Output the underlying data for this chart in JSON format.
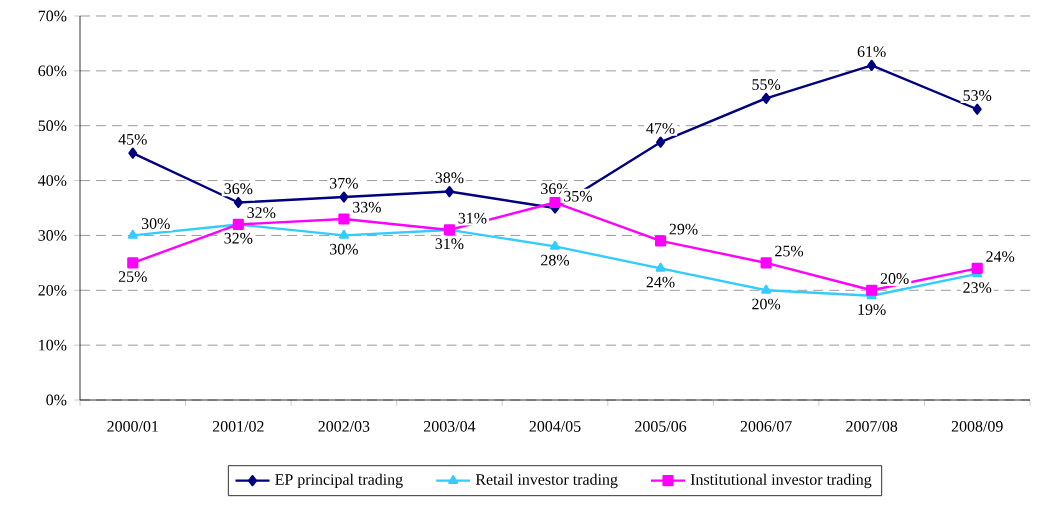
{
  "chart_data": {
    "type": "line",
    "categories": [
      "2000/01",
      "2001/02",
      "2002/03",
      "2003/04",
      "2004/05",
      "2005/06",
      "2006/07",
      "2007/08",
      "2008/09"
    ],
    "series": [
      {
        "name": "EP principal trading",
        "color": "#000080",
        "marker": "diamond",
        "values": [
          45,
          36,
          37,
          38,
          35,
          47,
          55,
          61,
          53
        ],
        "value_labels": [
          "45%",
          "36%",
          "37%",
          "38%",
          "35%",
          "47%",
          "55%",
          "61%",
          "53%"
        ]
      },
      {
        "name": "Retail investor trading",
        "color": "#33ccff",
        "marker": "triangle",
        "values": [
          30,
          32,
          30,
          31,
          28,
          24,
          20,
          19,
          23
        ],
        "value_labels": [
          "30%",
          "32%",
          "30%",
          "31%",
          "28%",
          "24%",
          "20%",
          "19%",
          "23%"
        ]
      },
      {
        "name": "Institutional investor trading",
        "color": "#ff00ff",
        "marker": "square",
        "values": [
          25,
          32,
          33,
          31,
          36,
          29,
          25,
          20,
          24
        ],
        "value_labels": [
          "25%",
          "32%",
          "33%",
          "31%",
          "36%",
          "29%",
          "25%",
          "20%",
          "24%"
        ]
      }
    ],
    "ylim": [
      0,
      70
    ],
    "yticks": [
      {
        "value": 0,
        "label": "0%"
      },
      {
        "value": 10,
        "label": "10%"
      },
      {
        "value": 20,
        "label": "20%"
      },
      {
        "value": 30,
        "label": "30%"
      },
      {
        "value": 40,
        "label": "40%"
      },
      {
        "value": 50,
        "label": "50%"
      },
      {
        "value": 60,
        "label": "60%"
      },
      {
        "value": 70,
        "label": "70%"
      }
    ],
    "grid": "y",
    "legend": "bottom",
    "line_style": "solid"
  }
}
